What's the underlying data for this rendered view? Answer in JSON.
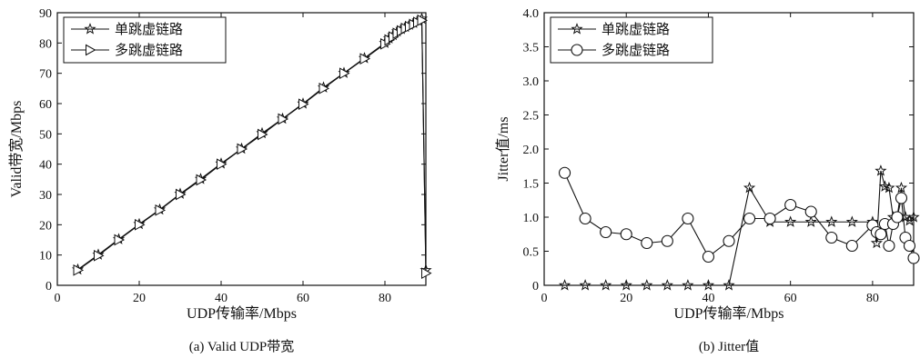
{
  "chart_data": [
    {
      "type": "line",
      "caption": "(a) Valid UDP带宽",
      "xlabel": "UDP传输率/Mbps",
      "ylabel": "Valid带宽/Mbps",
      "xlim": [
        0,
        90
      ],
      "ylim": [
        0,
        90
      ],
      "xticks": [
        0,
        20,
        40,
        60,
        80
      ],
      "yticks": [
        0,
        10,
        20,
        30,
        40,
        50,
        60,
        70,
        80,
        90
      ],
      "grid": false,
      "legend_position": "top-left",
      "series": [
        {
          "name": "单跳虚链路",
          "marker": "star",
          "x": [
            5,
            10,
            15,
            20,
            25,
            30,
            35,
            40,
            45,
            50,
            55,
            60,
            65,
            70,
            75,
            80,
            81,
            82,
            83,
            84,
            85,
            86,
            87,
            88,
            89,
            90
          ],
          "y": [
            5.2,
            10.1,
            15.2,
            20.2,
            25,
            30.2,
            35.1,
            40.2,
            45.1,
            50.2,
            55,
            60,
            65.3,
            70.1,
            75,
            80,
            81.5,
            82.6,
            83.8,
            84.6,
            85.3,
            86,
            86.6,
            87.4,
            88,
            5
          ]
        },
        {
          "name": "多跳虚链路",
          "marker": "triangle-right",
          "x": [
            5,
            10,
            15,
            20,
            25,
            30,
            35,
            40,
            45,
            50,
            55,
            60,
            65,
            70,
            75,
            80,
            81,
            82,
            83,
            84,
            85,
            86,
            87,
            88,
            89,
            90
          ],
          "y": [
            5,
            9.8,
            15,
            20,
            24.8,
            30,
            34.8,
            40,
            45,
            49.8,
            54.9,
            59.8,
            65,
            70,
            74.8,
            79.7,
            81,
            82,
            83.2,
            84,
            84.8,
            85.4,
            86.1,
            86.8,
            87.5,
            4
          ]
        }
      ]
    },
    {
      "type": "line",
      "caption": "(b) Jitter值",
      "xlabel": "UDP传输率/Mbps",
      "ylabel": "Jitter值/ms",
      "xlim": [
        0,
        90
      ],
      "ylim": [
        0,
        4
      ],
      "xticks": [
        0,
        20,
        40,
        60,
        80
      ],
      "yticks": [
        0,
        0.5,
        1.0,
        1.5,
        2.0,
        2.5,
        3.0,
        3.5,
        4.0
      ],
      "ytick_labels": [
        "0",
        "0.5",
        "1.0",
        "1.5",
        "2.0",
        "2.5",
        "3.0",
        "3.5",
        "4.0"
      ],
      "grid": false,
      "legend_position": "top-left",
      "series": [
        {
          "name": "单跳虚链路",
          "marker": "star",
          "x": [
            5,
            10,
            15,
            20,
            25,
            30,
            35,
            40,
            45,
            50,
            55,
            60,
            65,
            70,
            75,
            80,
            81,
            82,
            83,
            84,
            85,
            86,
            87,
            88,
            89,
            90
          ],
          "y": [
            0,
            0,
            0,
            0,
            0,
            0,
            0,
            0,
            0,
            1.43,
            0.93,
            0.93,
            0.93,
            0.93,
            0.93,
            0.93,
            0.62,
            1.68,
            1.45,
            1.43,
            1.0,
            1.0,
            1.43,
            1.0,
            0.95,
            1.0
          ]
        },
        {
          "name": "多跳虚链路",
          "marker": "circle",
          "x": [
            5,
            10,
            15,
            20,
            25,
            30,
            35,
            40,
            45,
            50,
            55,
            60,
            65,
            70,
            75,
            80,
            81,
            82,
            83,
            84,
            85,
            86,
            87,
            88,
            89,
            90
          ],
          "y": [
            1.65,
            0.98,
            0.78,
            0.75,
            0.62,
            0.65,
            0.98,
            0.42,
            0.65,
            0.98,
            0.98,
            1.18,
            1.08,
            0.7,
            0.58,
            0.88,
            0.78,
            0.75,
            0.9,
            0.58,
            0.9,
            1.0,
            1.28,
            0.7,
            0.58,
            0.4
          ]
        }
      ]
    }
  ]
}
